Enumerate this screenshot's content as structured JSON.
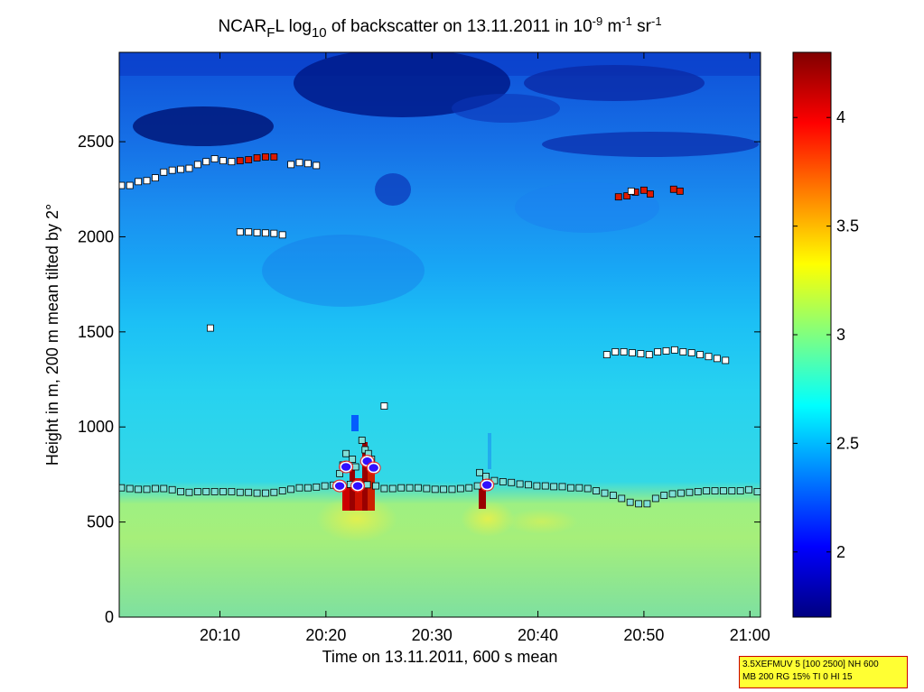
{
  "chart_data": {
    "type": "heatmap",
    "title": {
      "prefix": "NCAR",
      "sub1": "F",
      "mid": "L log",
      "sub2": "10",
      "mid2": " of backscatter on 13.11.2011 in 10",
      "sup1": "-9",
      "mid3": " m",
      "sup2": "-1",
      "mid4": " sr",
      "sup3": "-1"
    },
    "xlabel": "Time on 13.11.2011, 600 s mean",
    "ylabel": "Height in m, 200 m mean tilted by 2°",
    "xlim": [
      0.5,
      61
    ],
    "ylim": [
      0,
      2970
    ],
    "xticks": [
      {
        "value": 10,
        "label": "20:10"
      },
      {
        "value": 20,
        "label": "20:20"
      },
      {
        "value": 30,
        "label": "20:30"
      },
      {
        "value": 40,
        "label": "20:40"
      },
      {
        "value": 50,
        "label": "20:50"
      },
      {
        "value": 60,
        "label": "21:00"
      }
    ],
    "yticks": [
      0,
      500,
      1000,
      1500,
      2000,
      2500
    ],
    "colorbar": {
      "range": [
        1.7,
        4.3
      ],
      "ticks": [
        2,
        2.5,
        3,
        3.5,
        4
      ],
      "tick_labels": [
        "2",
        "2.5",
        "3",
        "3.5",
        "4"
      ],
      "colormap": [
        "#000080",
        "#0000ff",
        "#0080ff",
        "#00ffff",
        "#80ff80",
        "#ffff00",
        "#ff8000",
        "#ff0000",
        "#800000"
      ]
    },
    "field_description": {
      "low_layer": {
        "height_max": 650,
        "value": 2.95
      },
      "mid_layer": {
        "height_min": 650,
        "height_max": 1600,
        "value": 2.7
      },
      "upper_layer": {
        "height_min": 1600,
        "height_max": 2970,
        "value": 2.35
      },
      "top_band": {
        "height_min": 2400,
        "value": 2.0
      }
    },
    "series": [
      {
        "name": "boundary-layer-top",
        "marker": "square-teal",
        "points": [
          [
            0.7,
            680
          ],
          [
            1.5,
            676
          ],
          [
            2.3,
            672
          ],
          [
            3.1,
            672
          ],
          [
            3.9,
            676
          ],
          [
            4.7,
            676
          ],
          [
            5.5,
            670
          ],
          [
            6.3,
            660
          ],
          [
            7.1,
            656
          ],
          [
            7.9,
            660
          ],
          [
            8.7,
            660
          ],
          [
            9.5,
            660
          ],
          [
            10.3,
            660
          ],
          [
            11.1,
            660
          ],
          [
            11.9,
            656
          ],
          [
            12.7,
            656
          ],
          [
            13.5,
            652
          ],
          [
            14.3,
            652
          ],
          [
            15.1,
            656
          ],
          [
            15.9,
            664
          ],
          [
            16.7,
            672
          ],
          [
            17.5,
            680
          ],
          [
            18.3,
            680
          ],
          [
            19.1,
            684
          ],
          [
            19.9,
            690
          ],
          [
            20.7,
            694
          ],
          [
            21.5,
            694
          ],
          [
            22.3,
            698
          ],
          [
            23.1,
            700
          ],
          [
            23.9,
            696
          ],
          [
            24.7,
            690
          ],
          [
            25.5,
            676
          ],
          [
            26.3,
            676
          ],
          [
            27.1,
            680
          ],
          [
            27.9,
            680
          ],
          [
            28.7,
            680
          ],
          [
            29.5,
            676
          ],
          [
            30.3,
            672
          ],
          [
            31.1,
            672
          ],
          [
            31.9,
            672
          ],
          [
            32.7,
            676
          ],
          [
            33.5,
            680
          ],
          [
            34.3,
            690
          ],
          [
            35.1,
            720
          ],
          [
            35.9,
            718
          ],
          [
            36.7,
            712
          ],
          [
            37.5,
            708
          ],
          [
            38.3,
            700
          ],
          [
            39.1,
            696
          ],
          [
            39.9,
            690
          ],
          [
            40.7,
            690
          ],
          [
            41.5,
            686
          ],
          [
            42.3,
            686
          ],
          [
            43.1,
            680
          ],
          [
            43.9,
            680
          ],
          [
            44.7,
            676
          ],
          [
            45.5,
            664
          ],
          [
            46.3,
            652
          ],
          [
            47.1,
            640
          ],
          [
            47.9,
            624
          ],
          [
            48.7,
            604
          ],
          [
            49.5,
            596
          ],
          [
            50.3,
            596
          ],
          [
            51.1,
            624
          ],
          [
            51.9,
            640
          ],
          [
            52.7,
            648
          ],
          [
            53.5,
            652
          ],
          [
            54.3,
            656
          ],
          [
            55.1,
            660
          ],
          [
            55.9,
            664
          ],
          [
            56.7,
            664
          ],
          [
            57.5,
            664
          ],
          [
            58.3,
            664
          ],
          [
            59.1,
            664
          ],
          [
            59.9,
            670
          ],
          [
            60.7,
            660
          ]
        ]
      },
      {
        "name": "cloud-base-detections",
        "marker": "square-teal",
        "points": [
          [
            21.3,
            755
          ],
          [
            21.6,
            800
          ],
          [
            21.9,
            860
          ],
          [
            22.5,
            830
          ],
          [
            22.8,
            790
          ],
          [
            23.4,
            930
          ],
          [
            23.7,
            880
          ],
          [
            24.0,
            860
          ],
          [
            24.3,
            830
          ],
          [
            34.5,
            760
          ],
          [
            35.1,
            740
          ]
        ]
      },
      {
        "name": "circle-markers",
        "marker": "circle-blue",
        "points": [
          [
            21.3,
            690
          ],
          [
            21.9,
            790
          ],
          [
            23.0,
            690
          ],
          [
            23.9,
            820
          ],
          [
            24.5,
            785
          ],
          [
            35.2,
            695
          ]
        ]
      },
      {
        "name": "aerosol-layer-1",
        "marker": "square-white",
        "points": [
          [
            0.7,
            2270
          ],
          [
            1.5,
            2270
          ],
          [
            2.3,
            2290
          ],
          [
            3.1,
            2295
          ],
          [
            3.9,
            2310
          ],
          [
            4.7,
            2340
          ],
          [
            5.5,
            2350
          ],
          [
            6.3,
            2355
          ],
          [
            7.1,
            2360
          ],
          [
            7.9,
            2380
          ],
          [
            8.7,
            2395
          ],
          [
            9.5,
            2410
          ],
          [
            10.3,
            2400
          ],
          [
            11.1,
            2395
          ],
          [
            16.7,
            2380
          ],
          [
            17.5,
            2390
          ],
          [
            18.3,
            2385
          ],
          [
            19.1,
            2375
          ]
        ]
      },
      {
        "name": "aerosol-layer-1-red",
        "marker": "square-red",
        "points": [
          [
            11.9,
            2400
          ],
          [
            12.7,
            2405
          ],
          [
            13.5,
            2415
          ],
          [
            14.3,
            2420
          ],
          [
            15.1,
            2420
          ]
        ]
      },
      {
        "name": "aerosol-layer-2",
        "marker": "square-white",
        "points": [
          [
            11.9,
            2025
          ],
          [
            12.7,
            2025
          ],
          [
            13.5,
            2022
          ],
          [
            14.3,
            2020
          ],
          [
            15.1,
            2018
          ],
          [
            15.9,
            2010
          ]
        ]
      },
      {
        "name": "isolated-points",
        "marker": "square-white",
        "points": [
          [
            9.1,
            1520
          ],
          [
            25.5,
            1110
          ]
        ]
      },
      {
        "name": "aerosol-layer-3",
        "marker": "square-white",
        "points": [
          [
            46.5,
            1380
          ],
          [
            47.3,
            1395
          ],
          [
            48.1,
            1395
          ],
          [
            48.9,
            1390
          ],
          [
            49.7,
            1385
          ],
          [
            50.5,
            1380
          ],
          [
            51.3,
            1395
          ],
          [
            52.1,
            1400
          ],
          [
            52.9,
            1405
          ],
          [
            53.7,
            1395
          ],
          [
            54.5,
            1390
          ],
          [
            55.3,
            1380
          ],
          [
            56.1,
            1370
          ],
          [
            56.9,
            1360
          ],
          [
            57.7,
            1350
          ]
        ]
      },
      {
        "name": "upper-right-red",
        "marker": "square-red",
        "points": [
          [
            47.6,
            2210
          ],
          [
            48.4,
            2215
          ],
          [
            49.2,
            2235
          ],
          [
            50.0,
            2245
          ],
          [
            50.6,
            2225
          ],
          [
            52.8,
            2250
          ],
          [
            53.4,
            2240
          ]
        ]
      },
      {
        "name": "upper-right-white",
        "marker": "square-white",
        "points": [
          [
            48.8,
            2240
          ]
        ]
      }
    ]
  },
  "info_box": {
    "line1": "3.5XEFMUV 5 [100 2500] NH 600",
    "line2": "MB 200 RG 15% TI 0 HI 15"
  }
}
